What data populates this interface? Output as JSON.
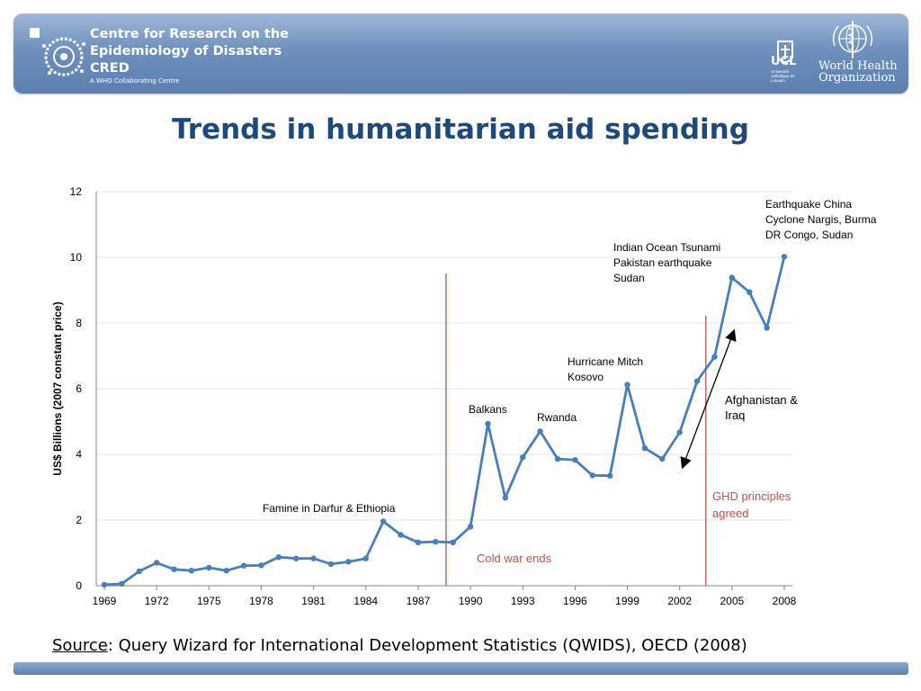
{
  "header": {
    "org_line1": "Centre for Research on the",
    "org_line2": "Epidemiology of Disasters",
    "org_line3": "CRED",
    "org_sub": "A WHO Collaborating Centre",
    "ucl": "UCL",
    "ucl_sub": "Université catholique de Louvain",
    "who_line1": "World Health",
    "who_line2": "Organization"
  },
  "title": "Trends in humanitarian aid spending",
  "source": {
    "label": "Source",
    "text": ": Query Wizard for International Development Statistics (QWIDS), OECD (2008)"
  },
  "chart_data": {
    "type": "line",
    "ylabel": "US$ Billions (2007 constant price)",
    "xlim": [
      1969,
      2008
    ],
    "ylim": [
      0,
      12
    ],
    "yticks": [
      0,
      2,
      4,
      6,
      8,
      10,
      12
    ],
    "xticks": [
      1969,
      1972,
      1975,
      1978,
      1981,
      1984,
      1987,
      1990,
      1993,
      1996,
      1999,
      2002,
      2005,
      2008
    ],
    "grid": true,
    "line_color": "#4a7ebb",
    "marker_color": "#4a7ebb",
    "vline_color": "#c0504d",
    "series": [
      {
        "x": [
          1969,
          1970,
          1971,
          1972,
          1973,
          1974,
          1975,
          1976,
          1977,
          1978,
          1979,
          1980,
          1981,
          1982,
          1983,
          1984,
          1985,
          1986,
          1987,
          1988,
          1989,
          1990,
          1991,
          1992,
          1993,
          1994,
          1995,
          1996,
          1997,
          1998,
          1999,
          2000,
          2001,
          2002,
          2003,
          2004,
          2005,
          2006,
          2007,
          2008
        ],
        "y": [
          0.03,
          0.06,
          0.44,
          0.7,
          0.5,
          0.46,
          0.55,
          0.46,
          0.61,
          0.62,
          0.87,
          0.83,
          0.83,
          0.66,
          0.73,
          0.83,
          1.96,
          1.55,
          1.32,
          1.34,
          1.32,
          1.8,
          4.93,
          2.68,
          3.91,
          4.7,
          3.86,
          3.83,
          3.36,
          3.35,
          6.12,
          4.19,
          3.86,
          4.67,
          6.23,
          6.97,
          9.38,
          8.94,
          7.85,
          10.02
        ]
      }
    ],
    "vlines": [
      {
        "x": 1988.6,
        "label": "Cold war ends"
      },
      {
        "x": 2003.5,
        "label": "GHD principles agreed"
      }
    ],
    "annotations": [
      {
        "text": [
          "Famine in Darfur & Ethiopia"
        ]
      },
      {
        "text": [
          "Balkans"
        ]
      },
      {
        "text": [
          "Rwanda"
        ]
      },
      {
        "text": [
          "Hurricane Mitch",
          "Kosovo"
        ]
      },
      {
        "text": [
          "Indian Ocean Tsunami",
          "Pakistan earthquake",
          "Sudan"
        ]
      },
      {
        "text": [
          "Earthquake China",
          "Cyclone Nargis, Burma",
          "DR Congo, Sudan"
        ]
      },
      {
        "text": [
          "Afghanistan &",
          "Iraq"
        ]
      }
    ]
  }
}
